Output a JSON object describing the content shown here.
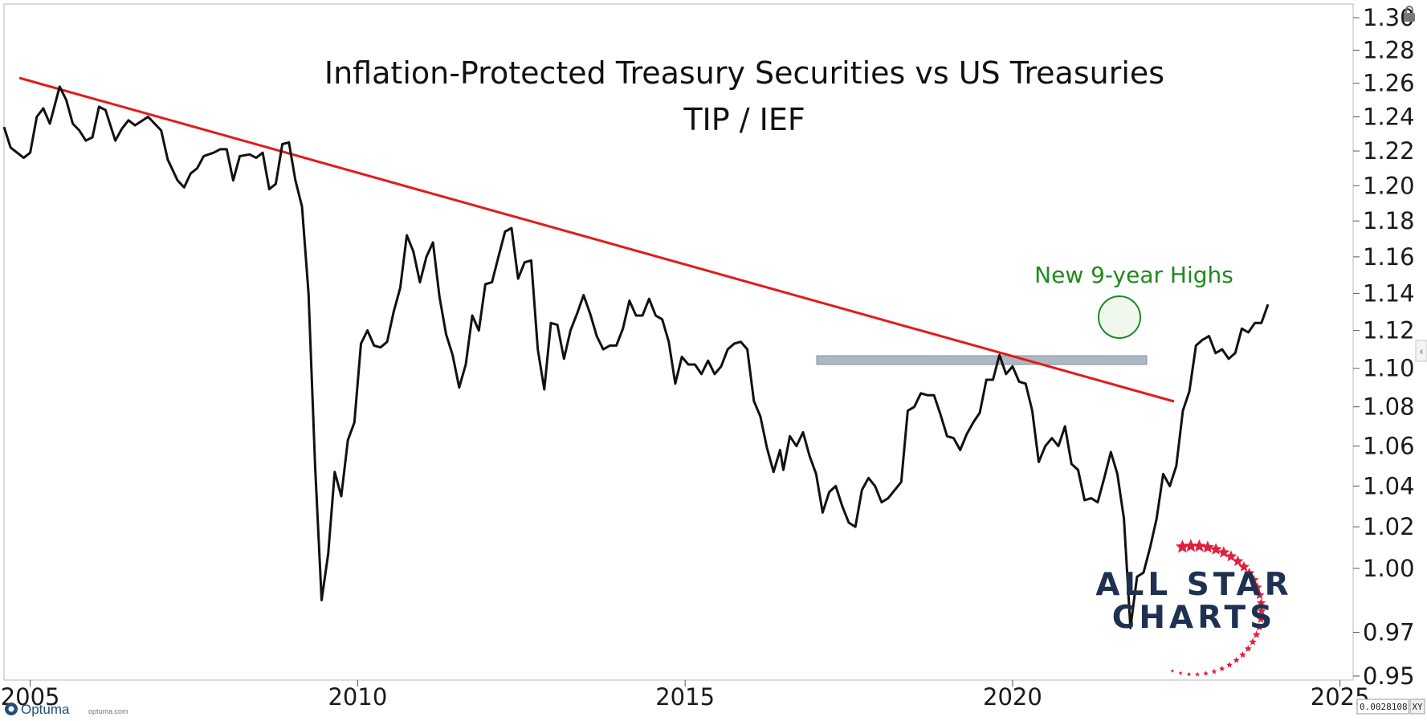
{
  "colors": {
    "price_line": "#111111",
    "trendline": "#e31b1b",
    "support_zone": "#9eacb9",
    "annotation": "#1e8a1e",
    "logo_text": "#1f3150",
    "logo_star": "#e0203e"
  },
  "chart_data": {
    "type": "line",
    "title": "Inflation-Protected Treasury Securities vs US Treasuries",
    "subtitle": "TIP / IEF",
    "xlabel": "",
    "ylabel": "",
    "x_ticks": [
      "2005",
      "2010",
      "2015",
      "2020",
      "2025"
    ],
    "y_ticks": [
      "0.95",
      "0.97",
      "1.00",
      "1.02",
      "1.04",
      "1.06",
      "1.08",
      "1.10",
      "1.12",
      "1.14",
      "1.16",
      "1.18",
      "1.20",
      "1.22",
      "1.24",
      "1.26",
      "1.28",
      "1.30"
    ],
    "xlim": [
      2004.6,
      2025.2
    ],
    "ylim": [
      0.95,
      1.3
    ],
    "y_scale": "log",
    "grid": false,
    "series": [
      {
        "values": [
          [
            2004.6,
            1.234
          ],
          [
            2004.7,
            1.222
          ],
          [
            2004.9,
            1.216
          ],
          [
            2005.0,
            1.219
          ],
          [
            2005.1,
            1.24
          ],
          [
            2005.2,
            1.245
          ],
          [
            2005.3,
            1.236
          ],
          [
            2005.45,
            1.258
          ],
          [
            2005.55,
            1.25
          ],
          [
            2005.65,
            1.236
          ],
          [
            2005.75,
            1.232
          ],
          [
            2005.85,
            1.226
          ],
          [
            2005.95,
            1.228
          ],
          [
            2006.05,
            1.246
          ],
          [
            2006.15,
            1.244
          ],
          [
            2006.3,
            1.226
          ],
          [
            2006.4,
            1.233
          ],
          [
            2006.5,
            1.238
          ],
          [
            2006.6,
            1.235
          ],
          [
            2006.8,
            1.24
          ],
          [
            2006.9,
            1.236
          ],
          [
            2007.0,
            1.232
          ],
          [
            2007.1,
            1.215
          ],
          [
            2007.25,
            1.203
          ],
          [
            2007.35,
            1.199
          ],
          [
            2007.45,
            1.207
          ],
          [
            2007.55,
            1.21
          ],
          [
            2007.65,
            1.217
          ],
          [
            2007.8,
            1.219
          ],
          [
            2007.9,
            1.221
          ],
          [
            2008.0,
            1.221
          ],
          [
            2008.1,
            1.203
          ],
          [
            2008.2,
            1.217
          ],
          [
            2008.35,
            1.218
          ],
          [
            2008.45,
            1.216
          ],
          [
            2008.55,
            1.219
          ],
          [
            2008.65,
            1.198
          ],
          [
            2008.75,
            1.201
          ],
          [
            2008.85,
            1.224
          ],
          [
            2008.95,
            1.225
          ],
          [
            2009.05,
            1.203
          ],
          [
            2009.15,
            1.188
          ],
          [
            2009.25,
            1.14
          ],
          [
            2009.35,
            1.05
          ],
          [
            2009.45,
            0.985
          ],
          [
            2009.55,
            1.007
          ],
          [
            2009.65,
            1.047
          ],
          [
            2009.75,
            1.035
          ],
          [
            2009.85,
            1.063
          ],
          [
            2009.95,
            1.072
          ],
          [
            2010.05,
            1.113
          ],
          [
            2010.15,
            1.12
          ],
          [
            2010.25,
            1.112
          ],
          [
            2010.35,
            1.111
          ],
          [
            2010.45,
            1.114
          ],
          [
            2010.55,
            1.13
          ],
          [
            2010.65,
            1.143
          ],
          [
            2010.75,
            1.172
          ],
          [
            2010.85,
            1.163
          ],
          [
            2010.95,
            1.146
          ],
          [
            2011.05,
            1.16
          ],
          [
            2011.15,
            1.168
          ],
          [
            2011.25,
            1.138
          ],
          [
            2011.35,
            1.118
          ],
          [
            2011.45,
            1.107
          ],
          [
            2011.55,
            1.09
          ],
          [
            2011.65,
            1.102
          ],
          [
            2011.75,
            1.128
          ],
          [
            2011.85,
            1.12
          ],
          [
            2011.95,
            1.145
          ],
          [
            2012.05,
            1.146
          ],
          [
            2012.15,
            1.16
          ],
          [
            2012.25,
            1.174
          ],
          [
            2012.35,
            1.176
          ],
          [
            2012.45,
            1.148
          ],
          [
            2012.55,
            1.157
          ],
          [
            2012.65,
            1.158
          ],
          [
            2012.75,
            1.11
          ],
          [
            2012.85,
            1.089
          ],
          [
            2012.95,
            1.124
          ],
          [
            2013.05,
            1.123
          ],
          [
            2013.15,
            1.105
          ],
          [
            2013.25,
            1.12
          ],
          [
            2013.35,
            1.129
          ],
          [
            2013.45,
            1.139
          ],
          [
            2013.55,
            1.129
          ],
          [
            2013.65,
            1.117
          ],
          [
            2013.75,
            1.11
          ],
          [
            2013.85,
            1.112
          ],
          [
            2013.95,
            1.112
          ],
          [
            2014.05,
            1.121
          ],
          [
            2014.15,
            1.136
          ],
          [
            2014.25,
            1.128
          ],
          [
            2014.35,
            1.128
          ],
          [
            2014.45,
            1.137
          ],
          [
            2014.55,
            1.128
          ],
          [
            2014.65,
            1.126
          ],
          [
            2014.75,
            1.114
          ],
          [
            2014.85,
            1.092
          ],
          [
            2014.95,
            1.106
          ],
          [
            2015.05,
            1.102
          ],
          [
            2015.15,
            1.102
          ],
          [
            2015.25,
            1.097
          ],
          [
            2015.35,
            1.104
          ],
          [
            2015.45,
            1.097
          ],
          [
            2015.55,
            1.101
          ],
          [
            2015.65,
            1.11
          ],
          [
            2015.75,
            1.113
          ],
          [
            2015.85,
            1.114
          ],
          [
            2015.95,
            1.11
          ],
          [
            2016.05,
            1.083
          ],
          [
            2016.15,
            1.075
          ],
          [
            2016.25,
            1.059
          ],
          [
            2016.35,
            1.047
          ],
          [
            2016.45,
            1.058
          ],
          [
            2016.5,
            1.048
          ],
          [
            2016.6,
            1.065
          ],
          [
            2016.7,
            1.06
          ],
          [
            2016.8,
            1.067
          ],
          [
            2016.9,
            1.055
          ],
          [
            2017.0,
            1.046
          ],
          [
            2017.1,
            1.027
          ],
          [
            2017.2,
            1.037
          ],
          [
            2017.3,
            1.04
          ],
          [
            2017.4,
            1.03
          ],
          [
            2017.5,
            1.022
          ],
          [
            2017.6,
            1.02
          ],
          [
            2017.7,
            1.038
          ],
          [
            2017.8,
            1.044
          ],
          [
            2017.9,
            1.04
          ],
          [
            2018.0,
            1.032
          ],
          [
            2018.1,
            1.034
          ],
          [
            2018.2,
            1.038
          ],
          [
            2018.3,
            1.042
          ],
          [
            2018.4,
            1.078
          ],
          [
            2018.5,
            1.08
          ],
          [
            2018.6,
            1.087
          ],
          [
            2018.7,
            1.086
          ],
          [
            2018.8,
            1.086
          ],
          [
            2018.9,
            1.076
          ],
          [
            2019.0,
            1.065
          ],
          [
            2019.1,
            1.064
          ],
          [
            2019.2,
            1.058
          ],
          [
            2019.3,
            1.066
          ],
          [
            2019.4,
            1.072
          ],
          [
            2019.5,
            1.077
          ],
          [
            2019.6,
            1.094
          ],
          [
            2019.7,
            1.094
          ],
          [
            2019.8,
            1.107
          ],
          [
            2019.9,
            1.097
          ],
          [
            2020.0,
            1.101
          ],
          [
            2020.1,
            1.093
          ],
          [
            2020.2,
            1.092
          ],
          [
            2020.3,
            1.078
          ],
          [
            2020.4,
            1.052
          ],
          [
            2020.5,
            1.06
          ],
          [
            2020.6,
            1.064
          ],
          [
            2020.7,
            1.06
          ],
          [
            2020.8,
            1.07
          ],
          [
            2020.9,
            1.051
          ],
          [
            2021.0,
            1.048
          ],
          [
            2021.1,
            1.033
          ],
          [
            2021.2,
            1.034
          ],
          [
            2021.3,
            1.032
          ],
          [
            2021.4,
            1.044
          ],
          [
            2021.5,
            1.057
          ],
          [
            2021.6,
            1.046
          ],
          [
            2021.7,
            1.024
          ],
          [
            2021.8,
            0.972
          ],
          [
            2021.9,
            0.996
          ],
          [
            2022.0,
            0.998
          ],
          [
            2022.1,
            1.01
          ],
          [
            2022.2,
            1.024
          ],
          [
            2022.3,
            1.046
          ],
          [
            2022.4,
            1.04
          ],
          [
            2022.5,
            1.05
          ],
          [
            2022.6,
            1.078
          ],
          [
            2022.7,
            1.088
          ],
          [
            2022.8,
            1.112
          ],
          [
            2022.9,
            1.115
          ],
          [
            2023.0,
            1.117
          ],
          [
            2023.1,
            1.108
          ],
          [
            2023.2,
            1.11
          ],
          [
            2023.3,
            1.105
          ],
          [
            2023.4,
            1.108
          ],
          [
            2023.5,
            1.121
          ],
          [
            2023.6,
            1.119
          ],
          [
            2023.7,
            1.124
          ],
          [
            2023.8,
            1.124
          ],
          [
            2023.9,
            1.134
          ]
        ]
      }
    ],
    "annotations": [
      {
        "text": "New 9-year Highs"
      }
    ]
  },
  "branding": {
    "logo_line1": "ALL STAR",
    "logo_line2": "CHARTS",
    "footer_brand": "Optuma",
    "footer_url": "optuma.com",
    "scale_readout": "0.0028108",
    "scale_mode": "XY"
  }
}
